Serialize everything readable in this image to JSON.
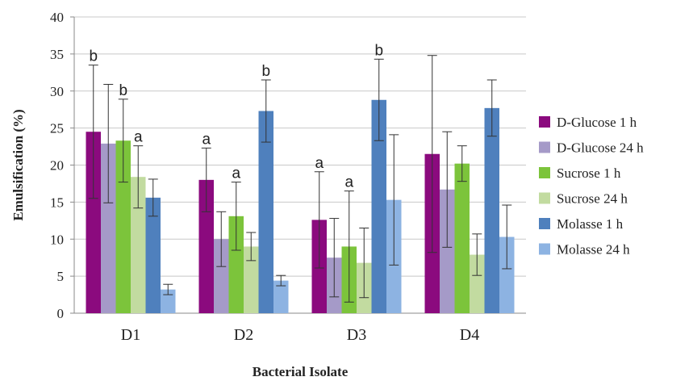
{
  "chart_data": {
    "type": "bar",
    "title": "",
    "xlabel": "Bacterial Isolate",
    "ylabel": "Emulsification (%)",
    "ylim": [
      0,
      40
    ],
    "yticks": [
      0,
      5,
      10,
      15,
      20,
      25,
      30,
      35,
      40
    ],
    "grid": "horizontal",
    "legend_position": "right",
    "categories": [
      "D1",
      "D2",
      "D3",
      "D4"
    ],
    "series": [
      {
        "name": "D-Glucose 1 h",
        "color": "#8b0a7e",
        "values": [
          24.5,
          18.0,
          12.6,
          21.5
        ],
        "errors": [
          9.0,
          4.3,
          6.5,
          13.3
        ],
        "sig_labels": [
          "b",
          "a",
          "a",
          ""
        ]
      },
      {
        "name": "D-Glucose 24 h",
        "color": "#a59ac8",
        "values": [
          22.9,
          10.0,
          7.5,
          16.7
        ],
        "errors": [
          8.0,
          3.7,
          5.3,
          7.8
        ],
        "sig_labels": [
          "",
          "",
          "",
          ""
        ]
      },
      {
        "name": "Sucrose 1 h",
        "color": "#7cc43b",
        "values": [
          23.3,
          13.1,
          9.0,
          20.2
        ],
        "errors": [
          5.6,
          4.6,
          7.5,
          2.4
        ],
        "sig_labels": [
          "b",
          "a",
          "a",
          ""
        ]
      },
      {
        "name": "Sucrose 24 h",
        "color": "#c2dba0",
        "values": [
          18.4,
          9.0,
          6.8,
          7.9
        ],
        "errors": [
          4.2,
          1.9,
          4.7,
          2.8
        ],
        "sig_labels": [
          "a",
          "",
          "",
          ""
        ]
      },
      {
        "name": "Molasse 1 h",
        "color": "#4f80bd",
        "values": [
          15.6,
          27.3,
          28.8,
          27.7
        ],
        "errors": [
          2.5,
          4.2,
          5.5,
          3.8
        ],
        "sig_labels": [
          "",
          "b",
          "b",
          ""
        ]
      },
      {
        "name": "Molasse 24 h",
        "color": "#8db3e2",
        "values": [
          3.2,
          4.4,
          15.3,
          10.3
        ],
        "errors": [
          0.7,
          0.7,
          8.8,
          4.3
        ],
        "sig_labels": [
          "",
          "",
          "",
          ""
        ]
      }
    ]
  }
}
